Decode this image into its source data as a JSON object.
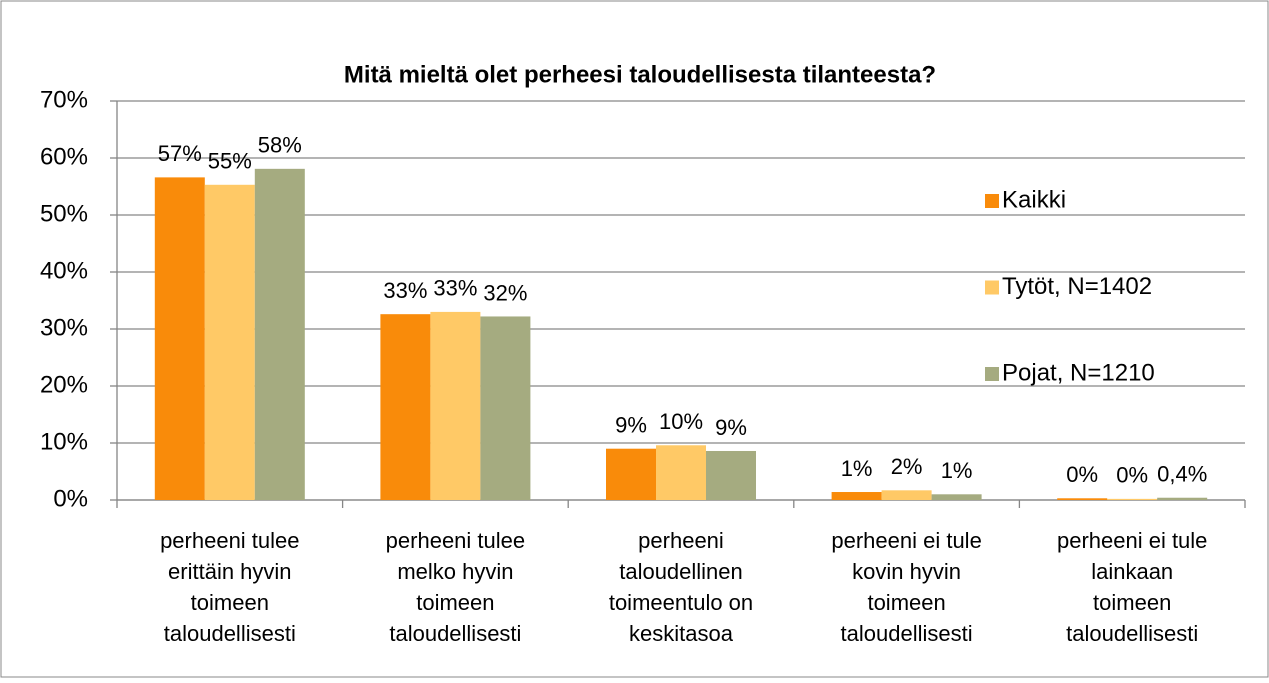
{
  "chart_data": {
    "type": "bar",
    "title": "Mitä mieltä olet perheesi taloudellisesta tilanteesta?",
    "categories": [
      "perheeni tulee erittäin hyvin toimeen taloudellisesti",
      "perheeni tulee melko hyvin toimeen taloudellisesti",
      "perheeni taloudellinen toimeentulo on keskitasoa",
      "perheeni ei tule kovin hyvin toimeen taloudellisesti",
      "perheeni ei tule lainkaan toimeen taloudellisesti"
    ],
    "series": [
      {
        "name": "Kaikki",
        "color": "#f98b0a",
        "values": [
          56.6,
          32.6,
          9.0,
          1.4,
          0.3
        ],
        "value_labels": [
          "57%",
          "33%",
          "9%",
          "1%",
          "0%"
        ]
      },
      {
        "name": "Tytöt, N=1402",
        "color": "#ffc966",
        "values": [
          55.3,
          33.0,
          9.6,
          1.7,
          0.2
        ],
        "value_labels": [
          "55%",
          "33%",
          "10%",
          "2%",
          "0%"
        ]
      },
      {
        "name": "Pojat, N=1210",
        "color": "#a5ab80",
        "values": [
          58.1,
          32.2,
          8.6,
          1.0,
          0.4
        ],
        "value_labels": [
          "58%",
          "32%",
          "9%",
          "1%",
          "0,4%"
        ]
      }
    ],
    "ylim": [
      0,
      70
    ],
    "yticks": [
      {
        "value": 0,
        "label": "0%"
      },
      {
        "value": 10,
        "label": "10%"
      },
      {
        "value": 20,
        "label": "20%"
      },
      {
        "value": 30,
        "label": "30%"
      },
      {
        "value": 40,
        "label": "40%"
      },
      {
        "value": 50,
        "label": "50%"
      },
      {
        "value": 60,
        "label": "60%"
      },
      {
        "value": 70,
        "label": "70%"
      }
    ],
    "grid": true,
    "legend": "right"
  }
}
